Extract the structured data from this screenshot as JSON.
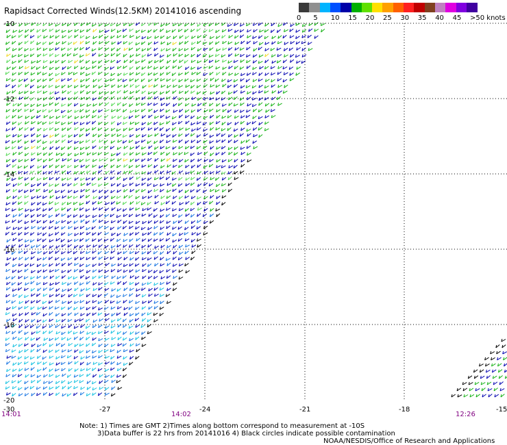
{
  "title": "Rapidsact Corrected Winds(12.5KM) 20141016 ascending",
  "legend": {
    "labels": [
      "0",
      "5",
      "10",
      "15",
      "20",
      "25",
      "30",
      "35",
      "40",
      "45",
      ">50 knots"
    ],
    "colors": [
      "#3a3a3a",
      "#909090",
      "#00b4ff",
      "#0050ff",
      "#0000a8",
      "#00b000",
      "#60e000",
      "#ffe000",
      "#ffa000",
      "#ff6000",
      "#ff2020",
      "#c00000",
      "#804020",
      "#c080c0",
      "#e000e0",
      "#8000e0",
      "#4000a0"
    ]
  },
  "map": {
    "lat_labels": [
      "-10",
      "-12",
      "-14",
      "-16",
      "-18",
      "-20"
    ],
    "lon_labels": [
      "-30",
      "-27",
      "-24",
      "-21",
      "-18",
      "-15"
    ],
    "times": [
      "14:01",
      "14:02",
      "12:26"
    ],
    "time_color": "#800080"
  },
  "notes": [
    "Note: 1) Times are GMT 2)Times along bottom correspond to measurement at -10S",
    "3)Data buffer is 22 hrs from 20141016 4) Black circles indicate possible contamination",
    "NOAA/NESDIS/Office of Research and Applications"
  ]
}
